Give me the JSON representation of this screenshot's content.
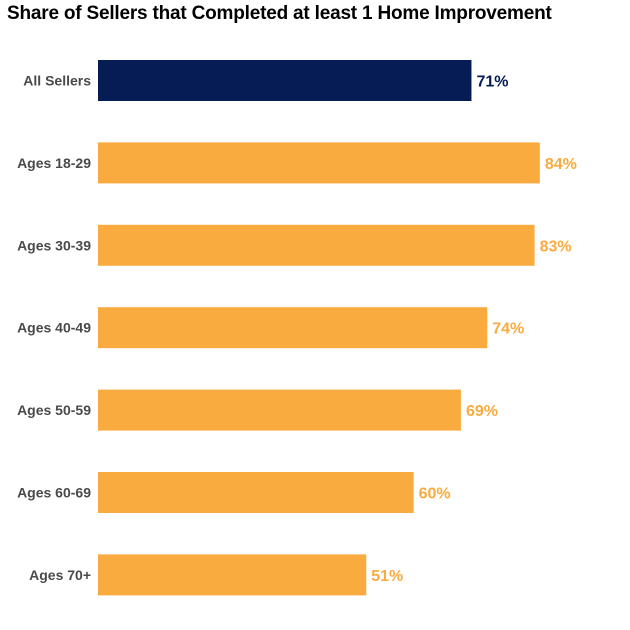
{
  "chart_data": {
    "type": "bar",
    "orientation": "horizontal",
    "title": "Share of Sellers that Completed at least 1 Home Improvement",
    "categories": [
      "All Sellers",
      "Ages 18-29",
      "Ages 30-39",
      "Ages 40-49",
      "Ages 50-59",
      "Ages 60-69",
      "Ages 70+"
    ],
    "values": [
      71,
      84,
      83,
      74,
      69,
      60,
      51
    ],
    "value_labels": [
      "71%",
      "84%",
      "83%",
      "74%",
      "69%",
      "60%",
      "51%"
    ],
    "unit": "%",
    "highlight_category": "All Sellers",
    "colors": {
      "highlight": "#051c55",
      "bar": "#f9ab3f",
      "category_label": "#4a4a4a"
    },
    "grid": false,
    "legend": "none"
  }
}
